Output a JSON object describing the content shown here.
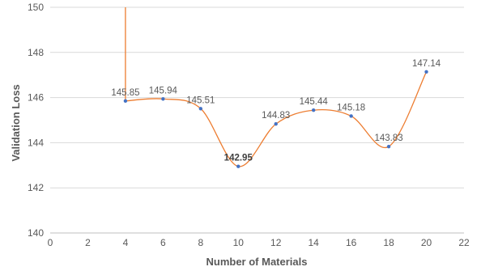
{
  "chart_data": {
    "type": "line",
    "title": "",
    "xlabel": "Number of Materials",
    "ylabel": "Validation Loss",
    "xlim": [
      0,
      22
    ],
    "ylim": [
      140,
      150
    ],
    "x_ticks": [
      0,
      2,
      4,
      6,
      8,
      10,
      12,
      14,
      16,
      18,
      20,
      22
    ],
    "y_ticks": [
      140,
      142,
      144,
      146,
      148,
      150
    ],
    "grid": "horizontal",
    "legend": "none",
    "series": [
      {
        "x": [
          4,
          6,
          8,
          10,
          12,
          14,
          16,
          18,
          20
        ],
        "values": [
          145.85,
          145.94,
          145.51,
          142.95,
          144.83,
          145.44,
          145.18,
          143.83,
          147.14
        ],
        "labels": [
          "145.85",
          "145.94",
          "145.51",
          "142.95",
          "144.83",
          "145.44",
          "145.18",
          "143.83",
          "147.14"
        ],
        "highlight_index": 3,
        "line_color": "#ED7D31",
        "marker_color": "#4472C4"
      }
    ]
  }
}
